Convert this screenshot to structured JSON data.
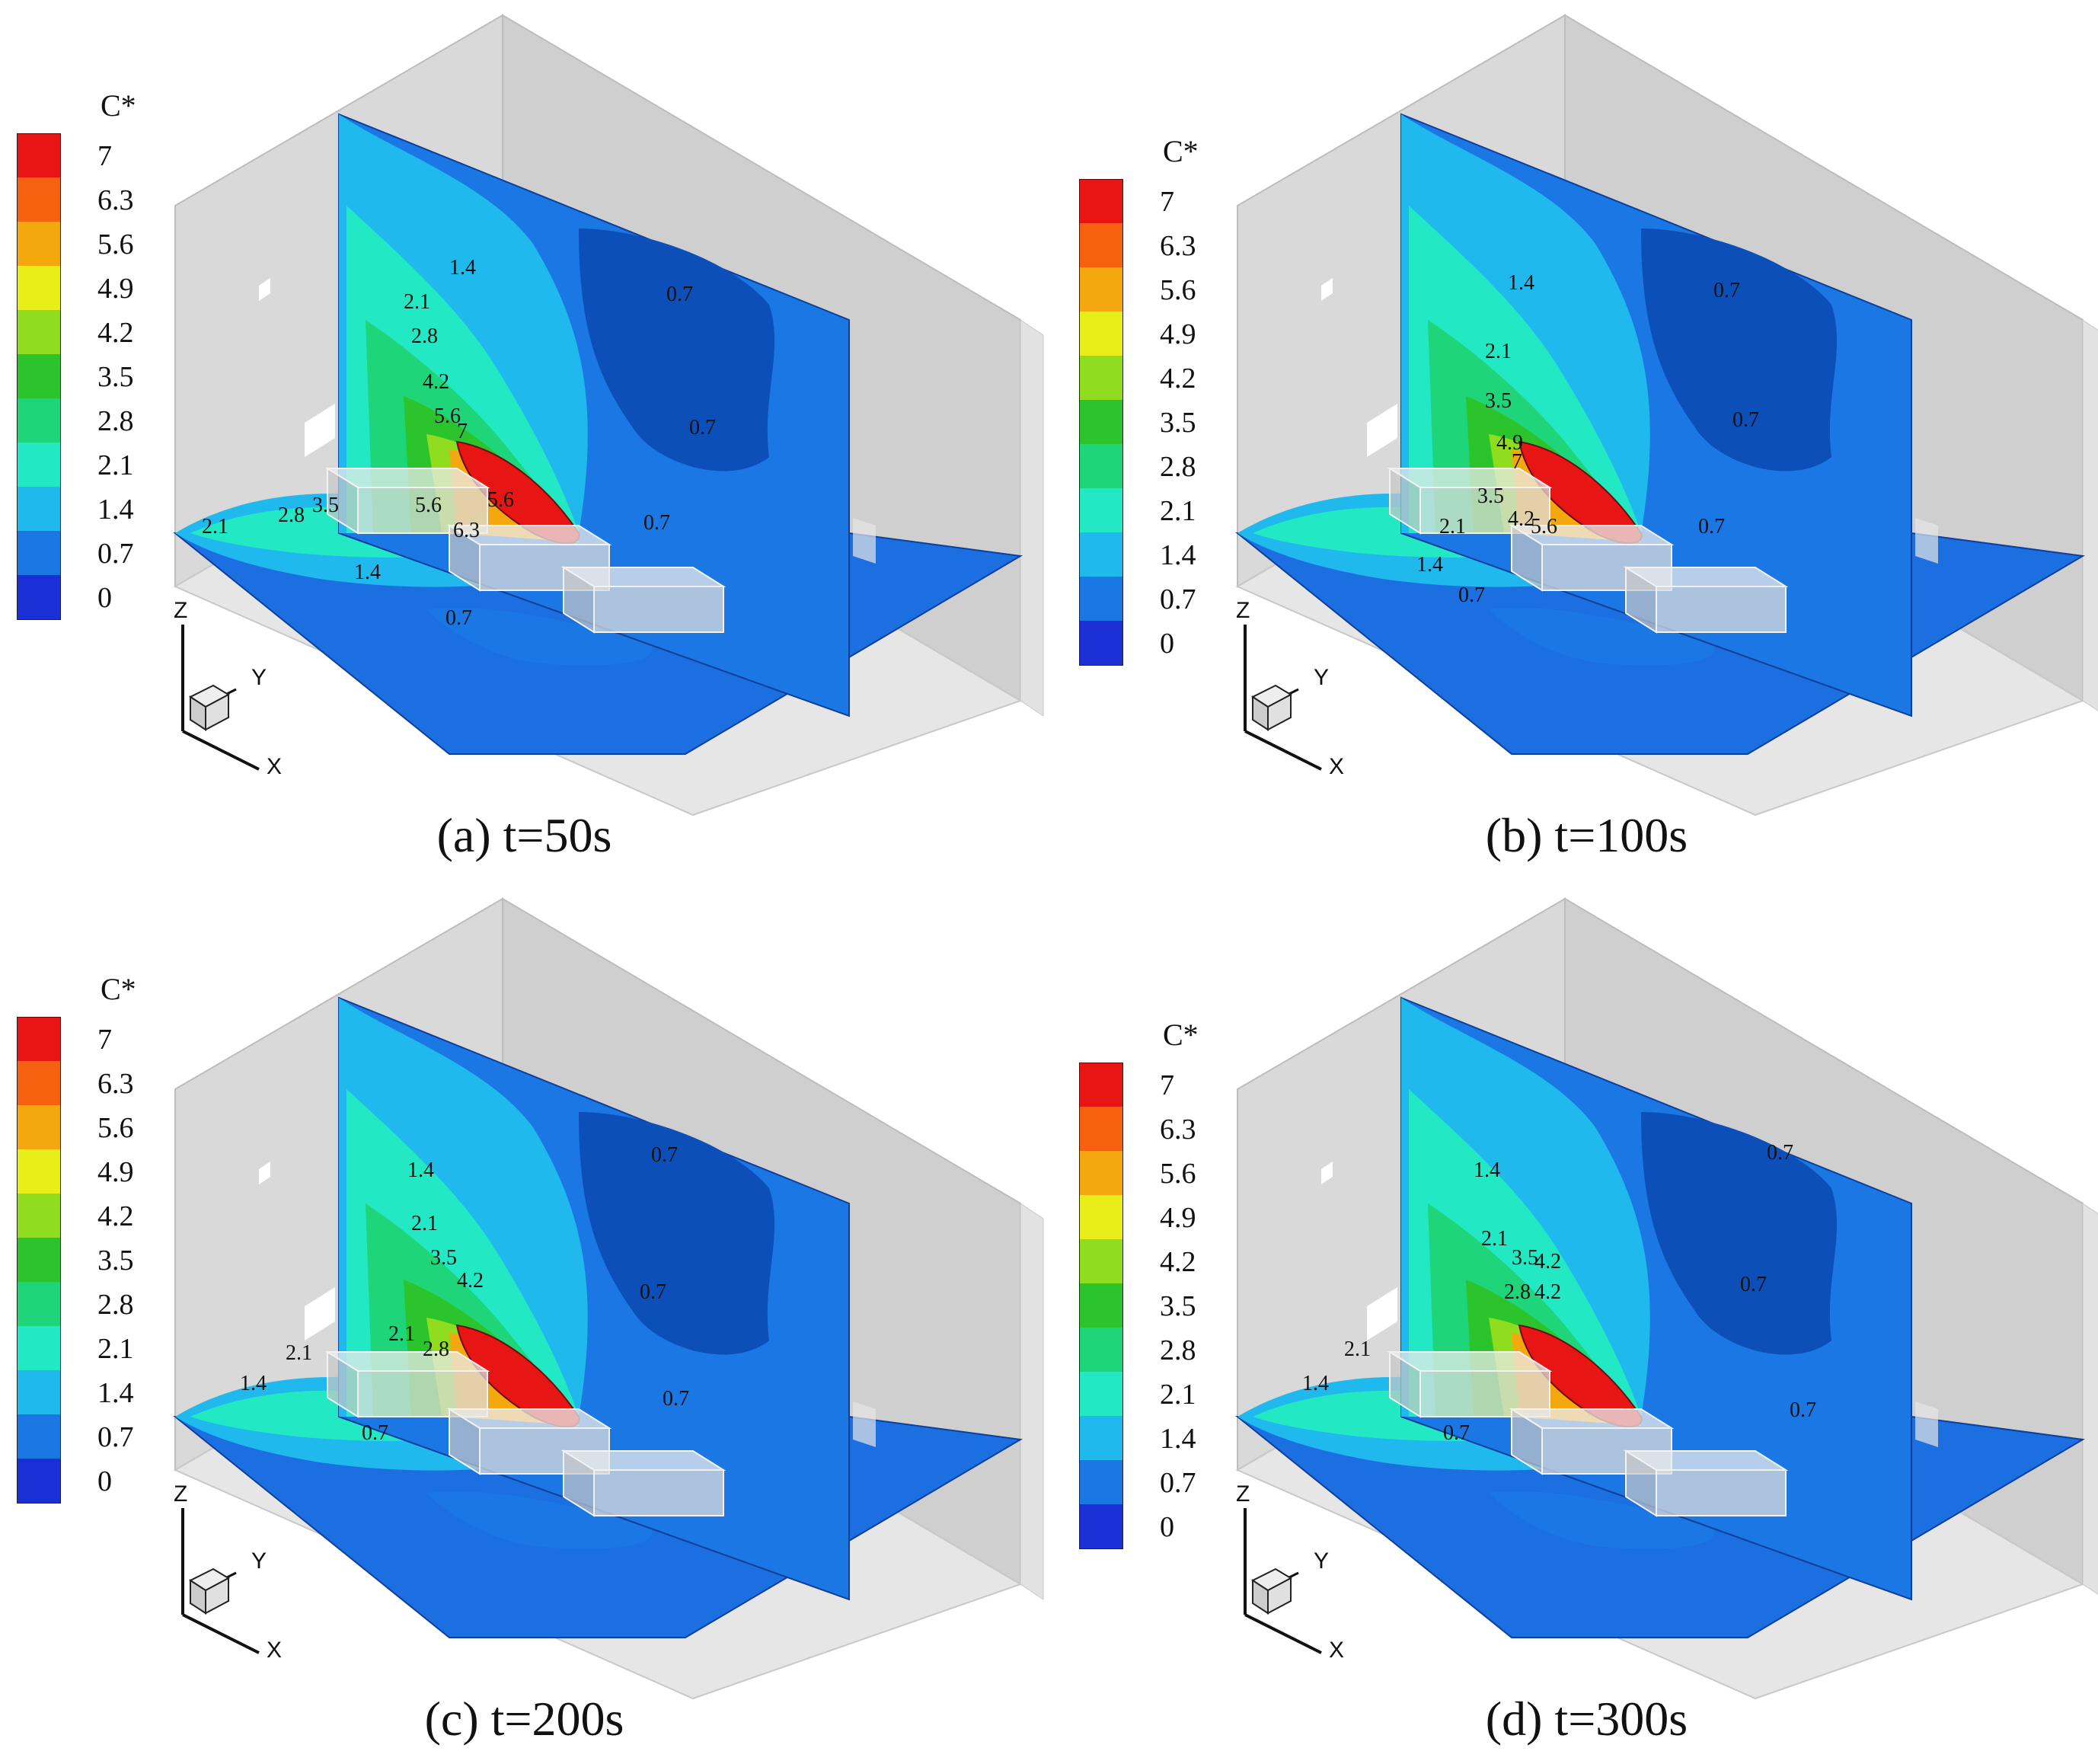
{
  "legend": {
    "title": "C*",
    "labels": [
      "7",
      "6.3",
      "5.6",
      "4.9",
      "4.2",
      "3.5",
      "2.8",
      "2.1",
      "1.4",
      "0.7",
      "0"
    ],
    "colors": [
      "#e81515",
      "#f6600f",
      "#f5a80e",
      "#e8ee1a",
      "#8fdd1e",
      "#2cc42c",
      "#1fd57a",
      "#22e8c4",
      "#1fb9ee",
      "#1b77e3",
      "#1a2fd6"
    ]
  },
  "axes": {
    "z": "Z",
    "y": "Y",
    "x": "X"
  },
  "panels": [
    {
      "caption": "(a) t=50s",
      "contour_labels": [
        "1.4",
        "2.1",
        "2.8",
        "4.2",
        "5.6",
        "7",
        "5.6",
        "6.3",
        "5.6",
        "3.5",
        "2.8",
        "2.1",
        "1.4",
        "0.7",
        "0.7",
        "0.7",
        "0.7"
      ]
    },
    {
      "caption": "(b) t=100s",
      "contour_labels": [
        "1.4",
        "2.1",
        "3.5",
        "4.9",
        "7",
        "3.5",
        "4.2",
        "5.6",
        "2.1",
        "1.4",
        "0.7",
        "0.7",
        "0.7",
        "0.7"
      ]
    },
    {
      "caption": "(c) t=200s",
      "contour_labels": [
        "1.4",
        "2.1",
        "3.5",
        "4.2",
        "2.1",
        "2.8",
        "2.1",
        "1.4",
        "0.7",
        "0.7",
        "0.7",
        "0.7"
      ]
    },
    {
      "caption": "(d) t=300s",
      "contour_labels": [
        "1.4",
        "2.1",
        "3.5",
        "4.2",
        "2.8",
        "4.2",
        "2.1",
        "1.4",
        "0.7",
        "0.7",
        "0.7",
        "0.7"
      ]
    }
  ]
}
